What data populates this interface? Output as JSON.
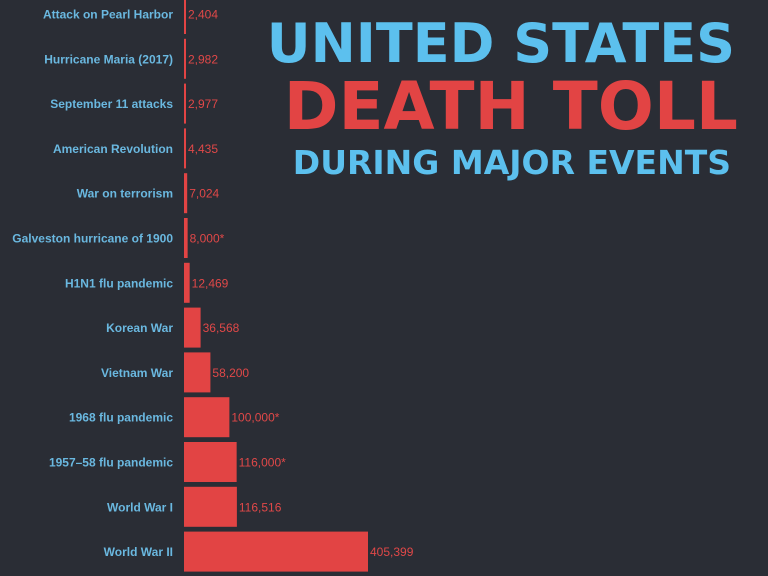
{
  "title": {
    "line1": "UNITED STATES",
    "line2": "DEATH TOLL",
    "line3": "DURING MAJOR EVENTS"
  },
  "colors": {
    "background": "#2a2d35",
    "bar": "#e24444",
    "label": "#6ab8e0",
    "value_label": "#e04848",
    "title_blue": "#5cc0ee",
    "title_red": "#e24444"
  },
  "chart_data": {
    "type": "bar",
    "orientation": "horizontal",
    "categories": [
      "Attack on Pearl Harbor",
      "Hurricane Maria (2017)",
      "September 11 attacks",
      "American Revolution",
      "War on terrorism",
      "Galveston hurricane of 1900",
      "H1N1 flu pandemic",
      "Korean War",
      "Vietnam War",
      "1968 flu pandemic",
      "1957–58 flu pandemic",
      "World War I",
      "World War II"
    ],
    "values": [
      2404,
      2982,
      2977,
      4435,
      7024,
      8000,
      12469,
      36568,
      58200,
      100000,
      116000,
      116516,
      405399
    ],
    "value_labels": [
      "2,404",
      "2,982",
      "2,977",
      "4,435",
      "7,024",
      "8,000*",
      "12,469",
      "36,568",
      "58,200",
      "100,000*",
      "116,000*",
      "116,516",
      "405,399"
    ],
    "title": "UNITED STATES DEATH TOLL DURING MAJOR EVENTS",
    "xlabel": "",
    "ylabel": "",
    "xlim": [
      0,
      405399
    ],
    "grid": false
  }
}
